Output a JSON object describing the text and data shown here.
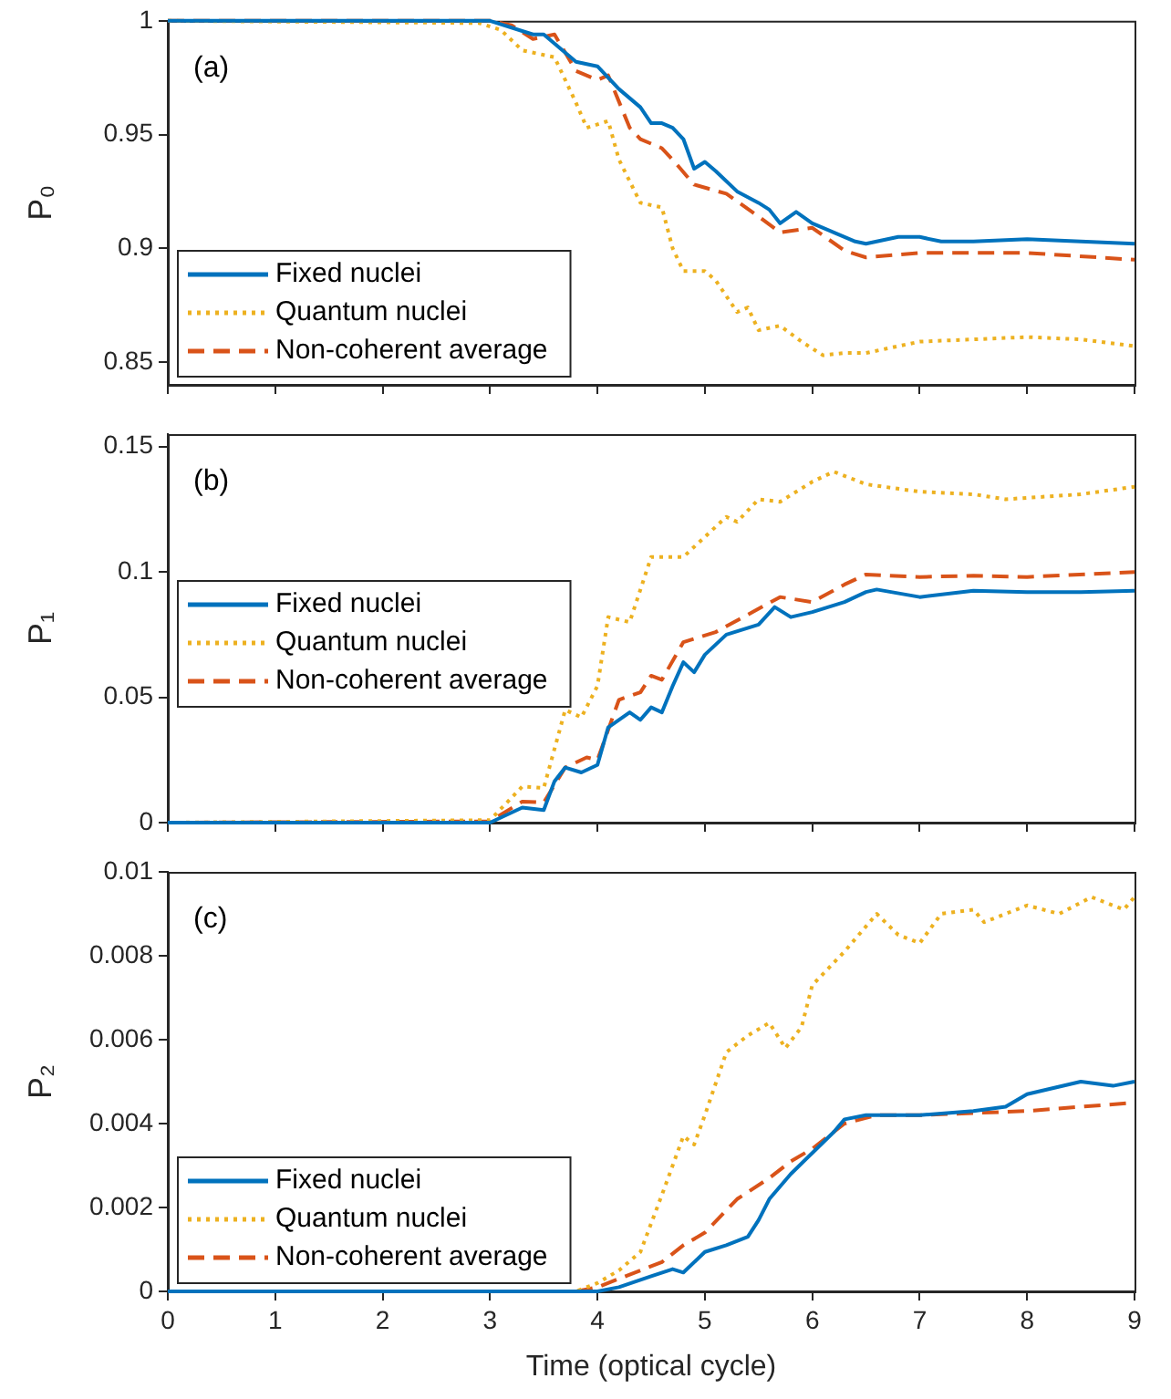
{
  "chart_data": [
    {
      "type": "line",
      "ylabel": "P₀",
      "annotations": [
        "(a)"
      ],
      "xlim": [
        0,
        9
      ],
      "xticks": [
        0,
        1,
        2,
        3,
        4,
        5,
        6,
        7,
        8,
        9
      ],
      "ylim": [
        0.84,
        1
      ],
      "yticks": [
        0.85,
        0.9,
        0.95,
        1
      ],
      "tick_labels": "y",
      "grid": false,
      "legend": "bottom left",
      "marker": "none",
      "series": [
        {
          "name": "Fixed nuclei",
          "color": "#0072bd",
          "line_style": "solid",
          "x": [
            0,
            3,
            3.4,
            3.5,
            3.6,
            3.8,
            4,
            4.2,
            4.4,
            4.5,
            4.6,
            4.7,
            4.8,
            4.9,
            5,
            5.1,
            5.3,
            5.5,
            5.6,
            5.7,
            5.85,
            6,
            6.2,
            6.4,
            6.5,
            6.8,
            7,
            7.2,
            7.5,
            8,
            8.5,
            9
          ],
          "values": [
            1,
            1,
            0.994,
            0.994,
            0.99,
            0.982,
            0.98,
            0.97,
            0.962,
            0.955,
            0.955,
            0.953,
            0.948,
            0.935,
            0.938,
            0.934,
            0.925,
            0.92,
            0.917,
            0.911,
            0.916,
            0.911,
            0.907,
            0.903,
            0.902,
            0.905,
            0.905,
            0.903,
            0.903,
            0.904,
            0.903,
            0.902
          ]
        },
        {
          "name": "Quantum nuclei",
          "color": "#edb120",
          "line_style": "dotted",
          "x": [
            0,
            2.9,
            3.1,
            3.3,
            3.5,
            3.6,
            3.8,
            3.9,
            4.1,
            4.2,
            4.4,
            4.6,
            4.7,
            4.8,
            5,
            5.1,
            5.3,
            5.4,
            5.5,
            5.7,
            5.9,
            6.1,
            6.3,
            6.5,
            7,
            7.5,
            8,
            8.5,
            9
          ],
          "values": [
            1,
            0.999,
            0.996,
            0.987,
            0.985,
            0.984,
            0.964,
            0.953,
            0.956,
            0.939,
            0.92,
            0.918,
            0.9,
            0.89,
            0.89,
            0.886,
            0.872,
            0.874,
            0.864,
            0.866,
            0.859,
            0.853,
            0.854,
            0.854,
            0.859,
            0.86,
            0.861,
            0.86,
            0.857
          ]
        },
        {
          "name": "Non-coherent average",
          "color": "#d95319",
          "line_style": "dashed",
          "x": [
            0,
            3,
            3.2,
            3.4,
            3.6,
            3.8,
            4,
            4.1,
            4.3,
            4.4,
            4.6,
            4.7,
            4.9,
            5.2,
            5.5,
            5.7,
            6,
            6.3,
            6.5,
            7,
            8,
            9
          ],
          "values": [
            1,
            1,
            0.998,
            0.992,
            0.994,
            0.978,
            0.974,
            0.976,
            0.953,
            0.948,
            0.944,
            0.939,
            0.928,
            0.924,
            0.914,
            0.907,
            0.909,
            0.899,
            0.896,
            0.898,
            0.898,
            0.895
          ]
        }
      ]
    },
    {
      "type": "line",
      "ylabel": "P₁",
      "annotations": [
        "(b)"
      ],
      "xlim": [
        0,
        9
      ],
      "xticks": [
        0,
        1,
        2,
        3,
        4,
        5,
        6,
        7,
        8,
        9
      ],
      "ylim": [
        0,
        0.155
      ],
      "yticks": [
        0,
        0.05,
        0.1,
        0.15
      ],
      "tick_labels": "y",
      "grid": false,
      "legend": "left",
      "marker": "none",
      "series": [
        {
          "name": "Fixed nuclei",
          "color": "#0072bd",
          "line_style": "solid",
          "x": [
            0,
            3,
            3.3,
            3.5,
            3.6,
            3.7,
            3.85,
            4,
            4.1,
            4.3,
            4.4,
            4.5,
            4.6,
            4.7,
            4.8,
            4.9,
            5,
            5.2,
            5.5,
            5.65,
            5.8,
            6,
            6.3,
            6.5,
            6.6,
            7,
            7.5,
            8,
            8.5,
            9
          ],
          "values": [
            0,
            0,
            0.006,
            0.005,
            0.0165,
            0.022,
            0.02,
            0.023,
            0.038,
            0.044,
            0.041,
            0.046,
            0.044,
            0.0545,
            0.064,
            0.06,
            0.067,
            0.075,
            0.079,
            0.086,
            0.082,
            0.084,
            0.088,
            0.092,
            0.093,
            0.09,
            0.0925,
            0.092,
            0.092,
            0.0925
          ]
        },
        {
          "name": "Quantum nuclei",
          "color": "#edb120",
          "line_style": "dotted",
          "x": [
            0,
            3,
            3.3,
            3.5,
            3.7,
            3.85,
            4,
            4.1,
            4.3,
            4.5,
            4.8,
            5,
            5.2,
            5.3,
            5.5,
            5.7,
            6,
            6.2,
            6.5,
            7,
            7.5,
            7.8,
            8.5,
            9
          ],
          "values": [
            0,
            0.001,
            0.0144,
            0.0138,
            0.045,
            0.042,
            0.0545,
            0.082,
            0.08,
            0.106,
            0.106,
            0.114,
            0.122,
            0.12,
            0.129,
            0.128,
            0.136,
            0.14,
            0.135,
            0.132,
            0.131,
            0.129,
            0.131,
            0.134
          ]
        },
        {
          "name": "Non-coherent average",
          "color": "#d95319",
          "line_style": "dashed",
          "x": [
            0,
            3,
            3.3,
            3.5,
            3.7,
            3.9,
            4,
            4.2,
            4.4,
            4.5,
            4.6,
            4.8,
            5.1,
            5.4,
            5.7,
            6,
            6.3,
            6.5,
            7,
            7.5,
            8,
            9
          ],
          "values": [
            0,
            0.0005,
            0.0084,
            0.008,
            0.022,
            0.026,
            0.025,
            0.049,
            0.052,
            0.0586,
            0.057,
            0.072,
            0.076,
            0.083,
            0.09,
            0.088,
            0.095,
            0.099,
            0.098,
            0.0985,
            0.098,
            0.1
          ]
        }
      ]
    },
    {
      "type": "line",
      "xlabel": "Time (optical cycle)",
      "ylabel": "P₂",
      "annotations": [
        "(c)"
      ],
      "xlim": [
        0,
        9
      ],
      "xticks": [
        0,
        1,
        2,
        3,
        4,
        5,
        6,
        7,
        8,
        9
      ],
      "ylim": [
        0,
        0.01
      ],
      "yticks": [
        0,
        0.002,
        0.004,
        0.006,
        0.008,
        0.01
      ],
      "grid": false,
      "legend": "bottom left",
      "marker": "none",
      "series": [
        {
          "name": "Fixed nuclei",
          "color": "#0072bd",
          "line_style": "solid",
          "x": [
            0,
            4,
            4.2,
            4.5,
            4.7,
            4.8,
            5,
            5.2,
            5.4,
            5.5,
            5.6,
            5.8,
            6,
            6.2,
            6.3,
            6.5,
            7,
            7.5,
            7.8,
            8,
            8.5,
            8.8,
            9
          ],
          "values": [
            0,
            0,
            0.0001,
            0.00036,
            0.00053,
            0.00045,
            0.00094,
            0.0011,
            0.0013,
            0.0017,
            0.0022,
            0.0028,
            0.0033,
            0.0038,
            0.0041,
            0.0042,
            0.0042,
            0.0043,
            0.0044,
            0.0047,
            0.005,
            0.0049,
            0.005
          ]
        },
        {
          "name": "Quantum nuclei",
          "color": "#edb120",
          "line_style": "dotted",
          "x": [
            0,
            3.8,
            4,
            4.2,
            4.4,
            4.6,
            4.8,
            4.9,
            5,
            5.2,
            5.4,
            5.6,
            5.75,
            5.9,
            6,
            6.3,
            6.6,
            6.8,
            7,
            7.2,
            7.5,
            7.6,
            8,
            8.3,
            8.6,
            8.9,
            9
          ],
          "values": [
            0,
            0,
            0.0002,
            0.0005,
            0.00094,
            0.0023,
            0.0037,
            0.0035,
            0.0042,
            0.0057,
            0.0061,
            0.0064,
            0.0058,
            0.0063,
            0.0073,
            0.0081,
            0.009,
            0.0085,
            0.0083,
            0.009,
            0.0091,
            0.0088,
            0.0092,
            0.009,
            0.0094,
            0.0091,
            0.0094
          ]
        },
        {
          "name": "Non-coherent average",
          "color": "#d95319",
          "line_style": "dashed",
          "x": [
            0,
            3.8,
            4,
            4.3,
            4.6,
            4.8,
            5,
            5.3,
            5.6,
            5.8,
            6,
            6.3,
            6.6,
            7,
            7.5,
            8,
            8.5,
            9
          ],
          "values": [
            0,
            0,
            0.0001,
            0.0004,
            0.0007,
            0.0011,
            0.0014,
            0.0022,
            0.0027,
            0.0031,
            0.0034,
            0.004,
            0.0042,
            0.0042,
            0.00425,
            0.0043,
            0.0044,
            0.0045
          ]
        }
      ]
    }
  ]
}
